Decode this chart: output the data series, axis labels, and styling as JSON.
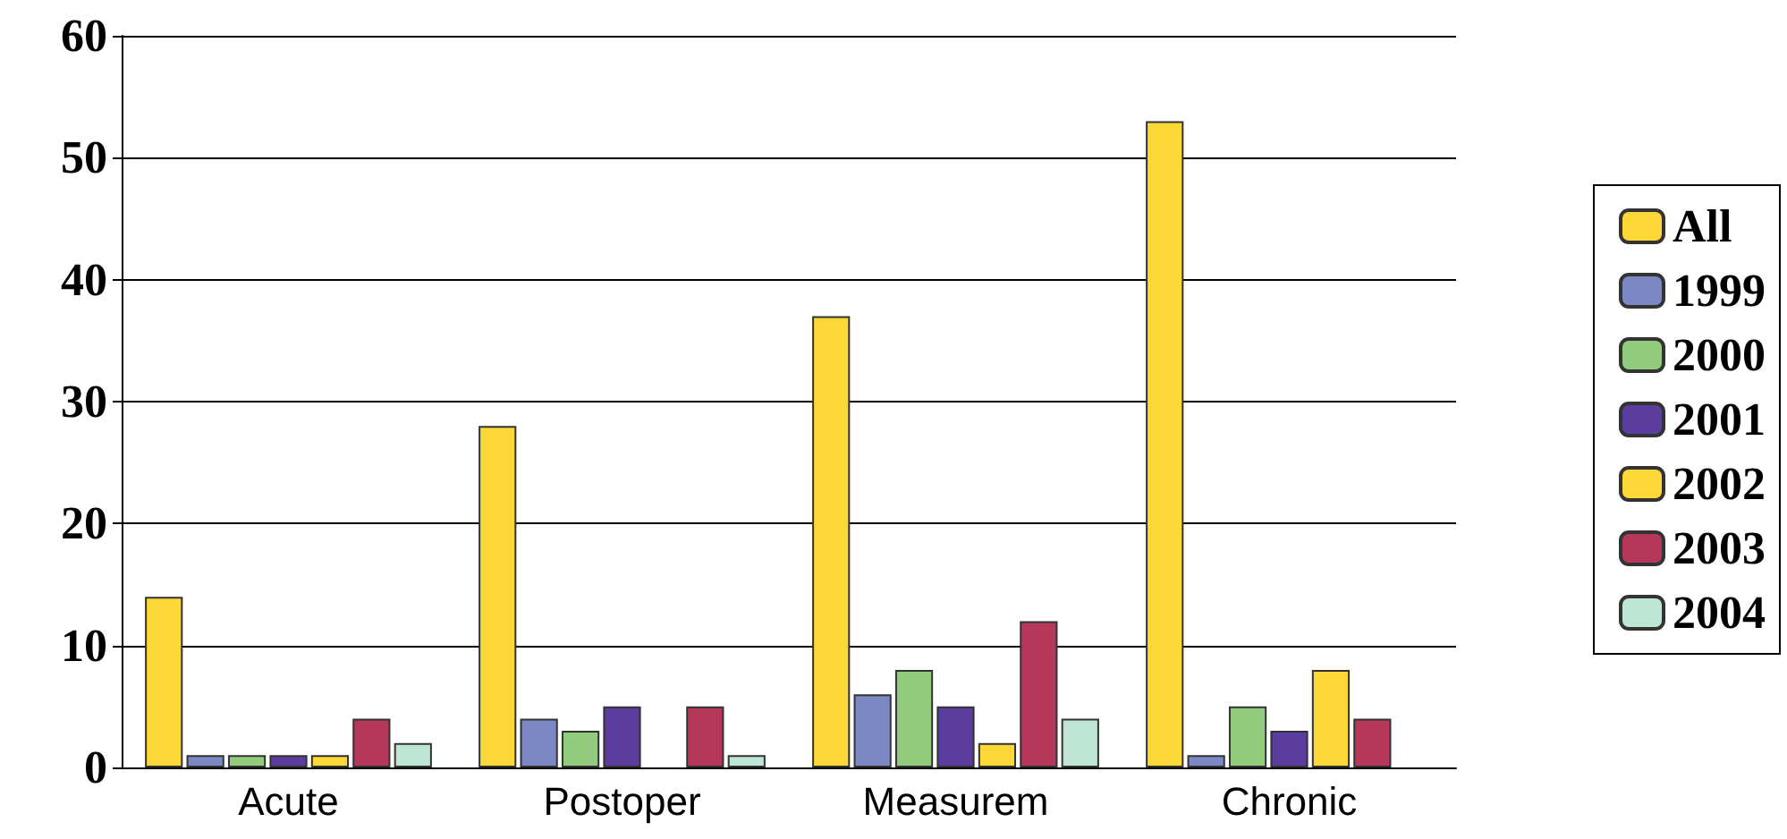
{
  "chart_data": {
    "type": "bar",
    "categories": [
      "Acute",
      "Postoper",
      "Measurem",
      "Chronic"
    ],
    "series": [
      {
        "name": "All",
        "color": "#fbd836",
        "values": [
          14,
          28,
          37,
          53
        ]
      },
      {
        "name": "1999",
        "color": "#7b88c4",
        "values": [
          1,
          4,
          6,
          1
        ]
      },
      {
        "name": "2000",
        "color": "#90cc7c",
        "values": [
          1,
          3,
          8,
          5
        ]
      },
      {
        "name": "2001",
        "color": "#5a3d9e",
        "values": [
          1,
          5,
          5,
          3
        ]
      },
      {
        "name": "2002",
        "color": "#fbd836",
        "values": [
          1,
          0,
          2,
          8
        ]
      },
      {
        "name": "2003",
        "color": "#b5385a",
        "values": [
          4,
          5,
          12,
          4
        ]
      },
      {
        "name": "2004",
        "color": "#bfe6d4",
        "values": [
          2,
          1,
          4,
          0
        ]
      }
    ],
    "ylim": [
      0,
      60
    ],
    "yticks": [
      0,
      10,
      20,
      30,
      40,
      50,
      60
    ],
    "grid": "y",
    "legend": "right"
  }
}
